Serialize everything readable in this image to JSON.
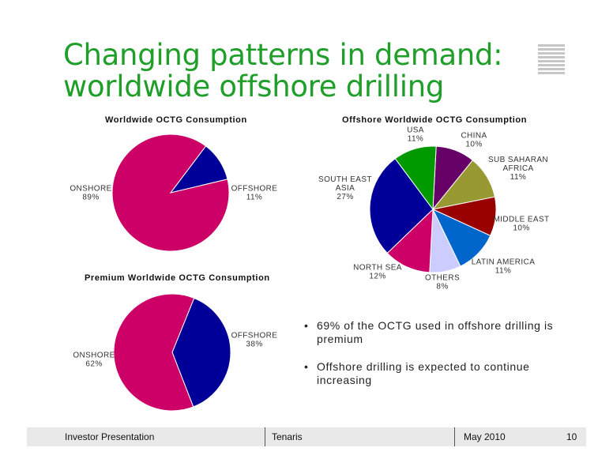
{
  "slide": {
    "title_line1": "Changing patterns in demand:",
    "title_line2": "worldwide offshore drilling",
    "title_color": "#1f9e2a"
  },
  "bullets": [
    "69% of the OCTG used in offshore drilling is premium",
    "Offshore drilling is expected to continue increasing"
  ],
  "footer": {
    "left": "Investor Presentation",
    "center": "Tenaris",
    "date": "May 2010",
    "page": "10"
  },
  "chart_data": [
    {
      "type": "pie",
      "title": "Worldwide OCTG Consumption",
      "slices": [
        {
          "label": "OFFSHORE",
          "value": 11,
          "value_label": "11%",
          "color": "#000099"
        },
        {
          "label": "ONSHORE",
          "value": 89,
          "value_label": "89%",
          "color": "#cc0066"
        }
      ]
    },
    {
      "type": "pie",
      "title": "Offshore Worldwide OCTG Consumption",
      "slices": [
        {
          "label": "CHINA",
          "value": 10,
          "value_label": "10%",
          "color": "#660066"
        },
        {
          "label": "SUB SAHARAN AFRICA",
          "value": 11,
          "value_label": "11%",
          "color": "#999933"
        },
        {
          "label": "MIDDLE EAST",
          "value": 10,
          "value_label": "10%",
          "color": "#990000"
        },
        {
          "label": "LATIN AMERICA",
          "value": 11,
          "value_label": "11%",
          "color": "#0066cc"
        },
        {
          "label": "OTHERS",
          "value": 8,
          "value_label": "8%",
          "color": "#ccccff"
        },
        {
          "label": "NORTH SEA",
          "value": 12,
          "value_label": "12%",
          "color": "#cc0066"
        },
        {
          "label": "SOUTH EAST ASIA",
          "value": 27,
          "value_label": "27%",
          "color": "#000099"
        },
        {
          "label": "USA",
          "value": 11,
          "value_label": "11%",
          "color": "#009900"
        }
      ]
    },
    {
      "type": "pie",
      "title": "Premium Worldwide OCTG Consumption",
      "slices": [
        {
          "label": "OFFSHORE",
          "value": 38,
          "value_label": "38%",
          "color": "#000099"
        },
        {
          "label": "ONSHORE",
          "value": 62,
          "value_label": "62%",
          "color": "#cc0066"
        }
      ]
    }
  ]
}
